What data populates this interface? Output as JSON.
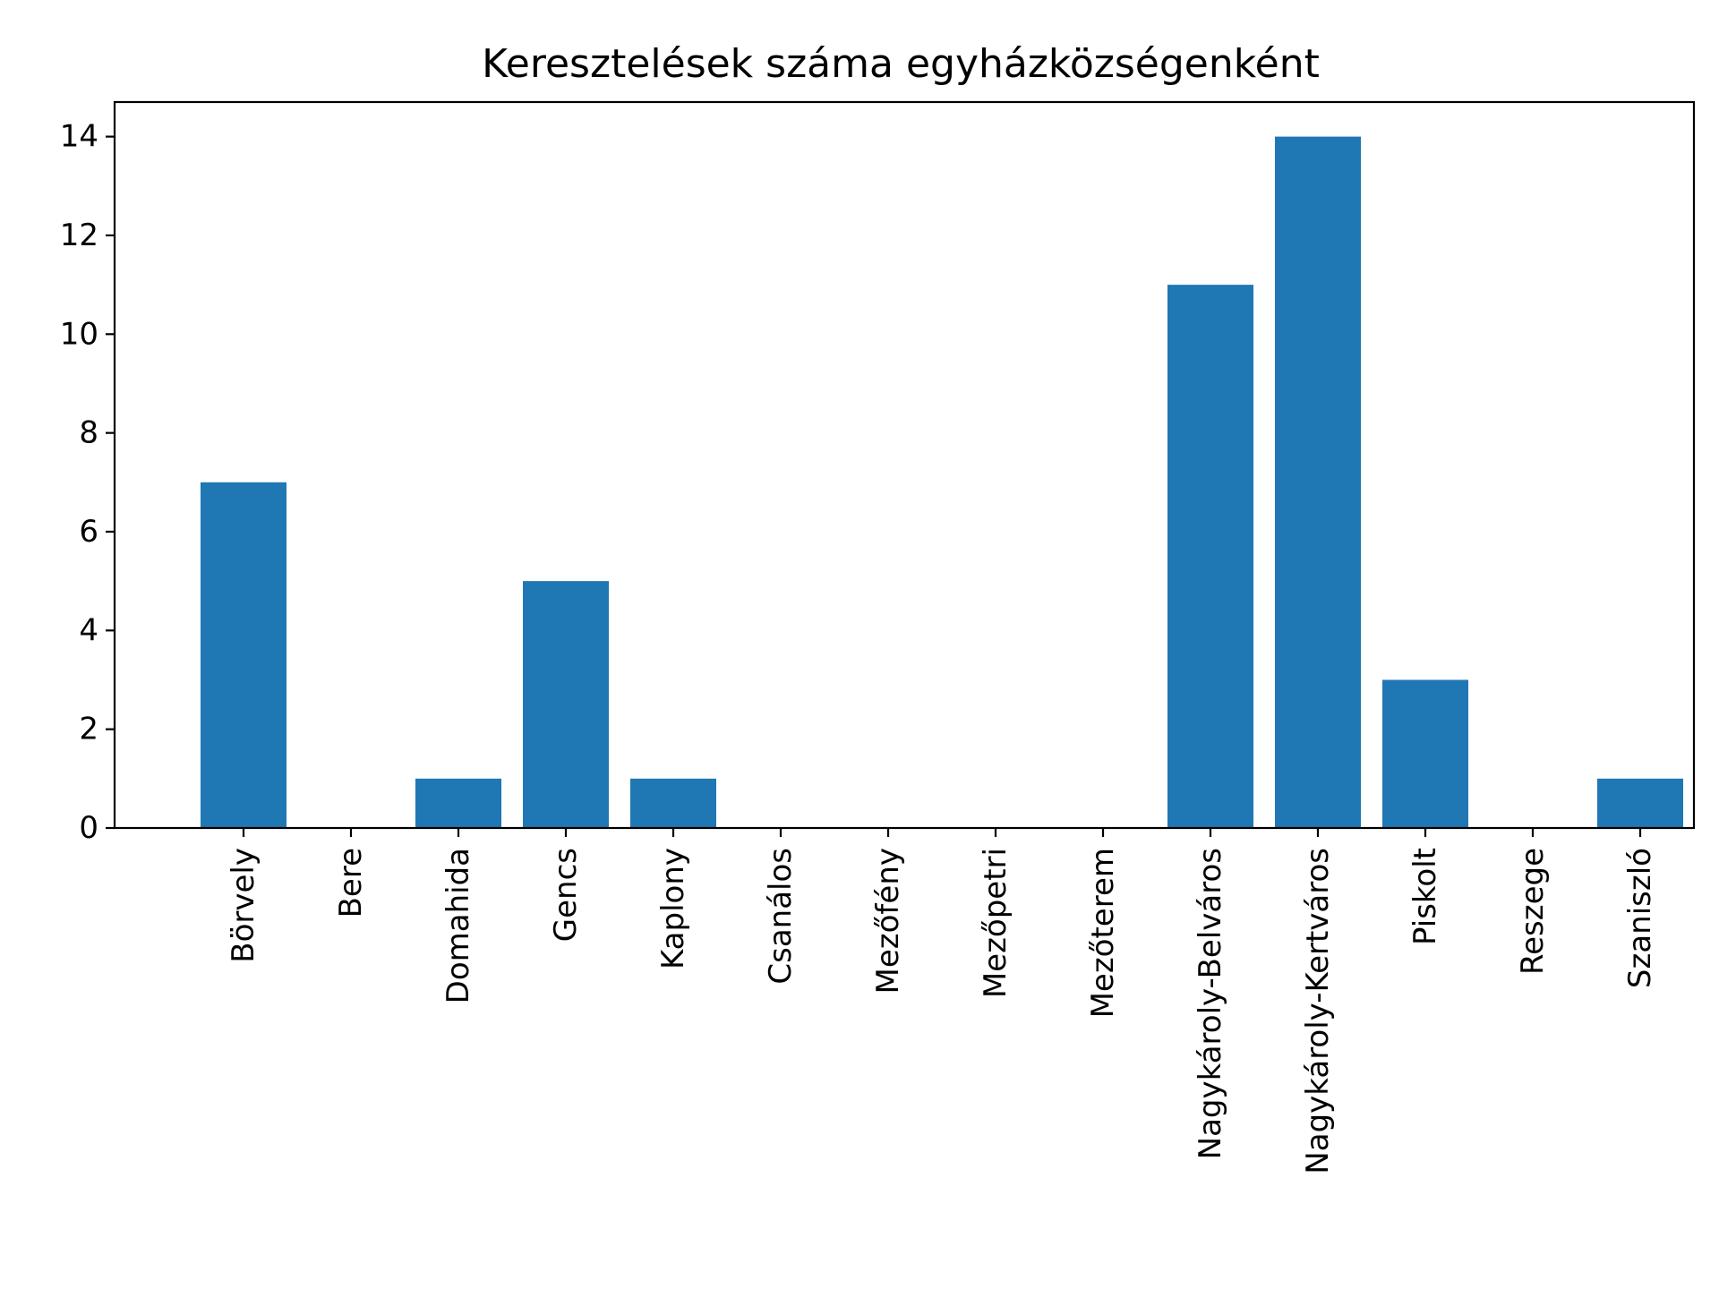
{
  "chart_data": {
    "type": "bar",
    "title": "Keresztelések száma egyházközségenként",
    "xlabel": "",
    "ylabel": "",
    "categories": [
      "Börvely",
      "Bere",
      "Domahida",
      "Gencs",
      "Kaplony",
      "Csanálos",
      "Mezőfény",
      "Mezőpetri",
      "Mezőterem",
      "Nagykároly-Belváros",
      "Nagykároly-Kertváros",
      "Piskolt",
      "Reszege",
      "Szaniszló"
    ],
    "values": [
      7,
      0,
      1,
      5,
      1,
      0,
      0,
      0,
      0,
      11,
      14,
      3,
      0,
      1
    ],
    "ylim": [
      0,
      14.7
    ],
    "yticks": [
      "0",
      "2",
      "4",
      "6",
      "8",
      "10",
      "12",
      "14"
    ],
    "bar_color": "#1f77b4",
    "grid": false,
    "legend": "none"
  }
}
